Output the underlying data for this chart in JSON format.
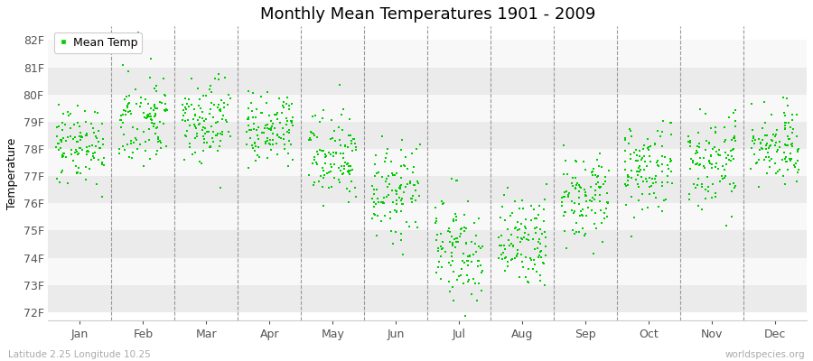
{
  "title": "Monthly Mean Temperatures 1901 - 2009",
  "ylabel": "Temperature",
  "xlabel_months": [
    "Jan",
    "Feb",
    "Mar",
    "Apr",
    "May",
    "Jun",
    "Jul",
    "Aug",
    "Sep",
    "Oct",
    "Nov",
    "Dec"
  ],
  "yticks": [
    72,
    73,
    74,
    75,
    76,
    77,
    78,
    79,
    80,
    81,
    82
  ],
  "ytick_labels": [
    "72F",
    "73F",
    "74F",
    "75F",
    "76F",
    "77F",
    "78F",
    "79F",
    "80F",
    "81F",
    "82F"
  ],
  "ylim": [
    71.7,
    82.5
  ],
  "bg_color": "#ffffff",
  "band_colors": [
    "#ebebeb",
    "#f8f8f8"
  ],
  "dot_color": "#00cc00",
  "dot_size": 3,
  "footer_left": "Latitude 2.25 Longitude 10.25",
  "footer_right": "worldspecies.org",
  "legend_label": "Mean Temp",
  "title_fontsize": 13,
  "label_fontsize": 9,
  "tick_fontsize": 9,
  "monthly_means": [
    78.2,
    79.0,
    79.0,
    78.7,
    77.9,
    76.4,
    74.4,
    74.5,
    76.1,
    77.2,
    77.5,
    78.1
  ],
  "monthly_stds": [
    0.75,
    0.85,
    0.75,
    0.65,
    0.8,
    0.85,
    0.95,
    0.9,
    0.8,
    0.85,
    0.8,
    0.7
  ],
  "n_years": 109,
  "random_seed": 42
}
